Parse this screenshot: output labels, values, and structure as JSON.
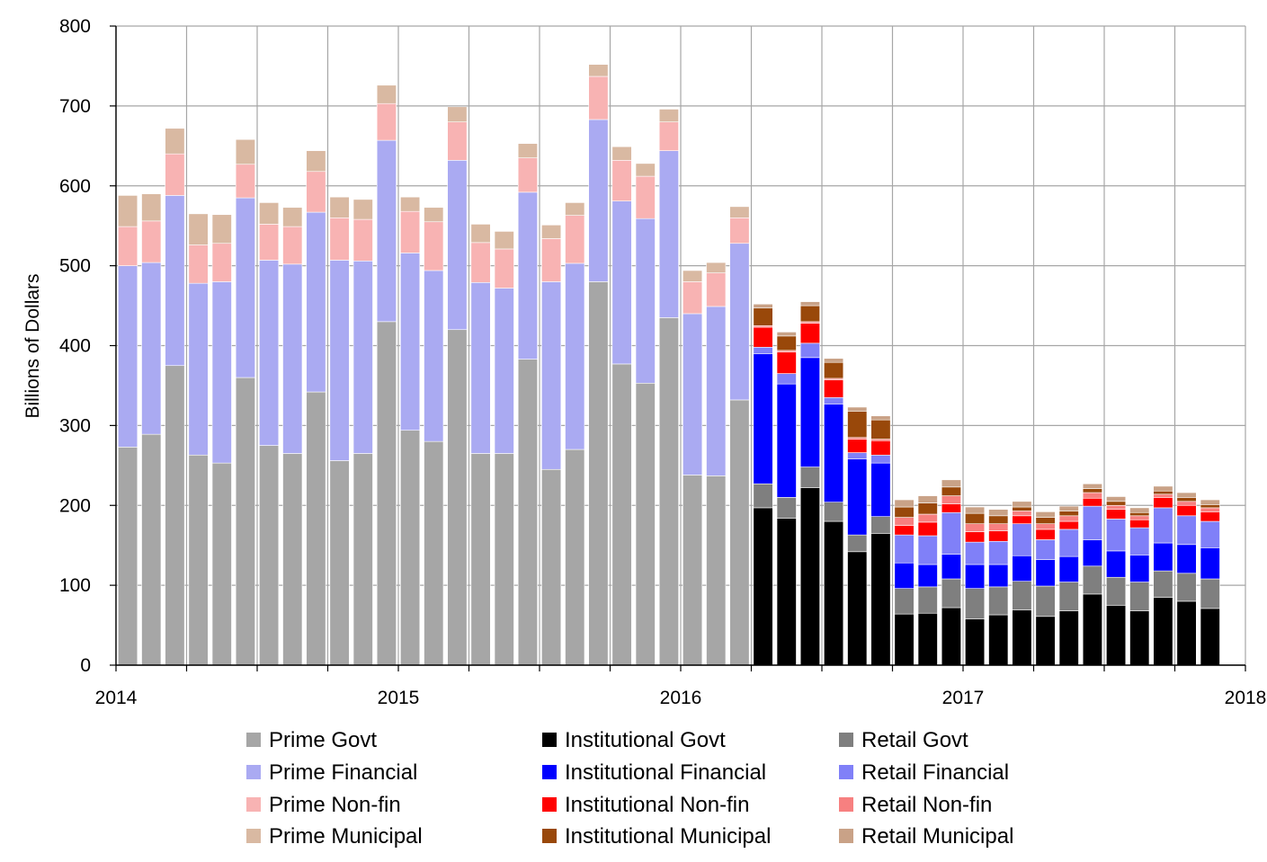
{
  "chart_data": {
    "type": "bar",
    "stacked": true,
    "title": "",
    "xlabel": "",
    "ylabel": "Billions of Dollars",
    "ylim": [
      0,
      800
    ],
    "yticks": [
      "0",
      "100",
      "200",
      "300",
      "400",
      "500",
      "600",
      "700",
      "800"
    ],
    "xticks": [
      "2014",
      "2015",
      "2016",
      "2017",
      "2018"
    ],
    "grid": true,
    "legend_position": "bottom",
    "x": [
      "2014-01",
      "2014-02",
      "2014-03",
      "2014-04",
      "2014-05",
      "2014-06",
      "2014-07",
      "2014-08",
      "2014-09",
      "2014-10",
      "2014-11",
      "2014-12",
      "2015-01",
      "2015-02",
      "2015-03",
      "2015-04",
      "2015-05",
      "2015-06",
      "2015-07",
      "2015-08",
      "2015-09",
      "2015-10",
      "2015-11",
      "2015-12",
      "2016-01",
      "2016-02",
      "2016-03",
      "2016-04",
      "2016-05",
      "2016-06",
      "2016-07",
      "2016-08",
      "2016-09",
      "2016-10",
      "2016-11",
      "2016-12",
      "2017-01",
      "2017-02",
      "2017-03",
      "2017-04",
      "2017-05",
      "2017-06",
      "2017-07",
      "2017-08",
      "2017-09",
      "2017-10",
      "2017-11"
    ],
    "series": [
      {
        "name": "Prime Govt",
        "color": "#a6a6a6",
        "values": [
          273,
          289,
          375,
          263,
          253,
          360,
          275,
          265,
          342,
          256,
          265,
          430,
          294,
          280,
          420,
          265,
          265,
          383,
          245,
          270,
          480,
          377,
          353,
          435,
          238,
          237,
          332,
          0,
          0,
          0,
          0,
          0,
          0,
          0,
          0,
          0,
          0,
          0,
          0,
          0,
          0,
          0,
          0,
          0,
          0,
          0,
          0
        ]
      },
      {
        "name": "Prime Financial",
        "color": "#aaaaf2",
        "values": [
          227,
          215,
          213,
          215,
          227,
          225,
          232,
          237,
          225,
          251,
          241,
          227,
          222,
          214,
          212,
          214,
          207,
          209,
          235,
          233,
          203,
          204,
          206,
          209,
          202,
          212,
          196,
          0,
          0,
          0,
          0,
          0,
          0,
          0,
          0,
          0,
          0,
          0,
          0,
          0,
          0,
          0,
          0,
          0,
          0,
          0,
          0
        ]
      },
      {
        "name": "Prime Non-fin",
        "color": "#f8b3b3",
        "values": [
          49,
          52,
          52,
          48,
          48,
          42,
          45,
          47,
          51,
          53,
          52,
          46,
          52,
          61,
          48,
          50,
          49,
          43,
          54,
          60,
          54,
          51,
          53,
          36,
          40,
          42,
          32,
          0,
          0,
          0,
          0,
          0,
          0,
          0,
          0,
          0,
          0,
          0,
          0,
          0,
          0,
          0,
          0,
          0,
          0,
          0,
          0
        ]
      },
      {
        "name": "Prime Municipal",
        "color": "#d9b9a2",
        "values": [
          39,
          34,
          32,
          39,
          36,
          31,
          27,
          24,
          26,
          26,
          25,
          23,
          18,
          18,
          19,
          23,
          22,
          18,
          17,
          16,
          15,
          17,
          16,
          16,
          14,
          13,
          14,
          0,
          0,
          0,
          0,
          0,
          0,
          0,
          0,
          0,
          0,
          0,
          0,
          0,
          0,
          0,
          0,
          0,
          0,
          0,
          0
        ]
      },
      {
        "name": "Institutional Govt",
        "color": "#000000",
        "values": [
          0,
          0,
          0,
          0,
          0,
          0,
          0,
          0,
          0,
          0,
          0,
          0,
          0,
          0,
          0,
          0,
          0,
          0,
          0,
          0,
          0,
          0,
          0,
          0,
          0,
          0,
          0,
          197,
          184,
          222,
          180,
          142,
          165,
          64,
          65,
          72,
          58,
          63,
          69,
          61,
          68,
          89,
          75,
          68,
          85,
          80,
          71
        ]
      },
      {
        "name": "Institutional Financial",
        "color": "#0000ff",
        "values": [
          0,
          0,
          0,
          0,
          0,
          0,
          0,
          0,
          0,
          0,
          0,
          0,
          0,
          0,
          0,
          0,
          0,
          0,
          0,
          0,
          0,
          0,
          0,
          0,
          0,
          0,
          0,
          163,
          142,
          137,
          123,
          95,
          67,
          32,
          28,
          31,
          30,
          28,
          32,
          33,
          32,
          33,
          33,
          34,
          35,
          36,
          39
        ]
      },
      {
        "name": "Institutional Non-fin",
        "color": "#ff0000",
        "values": [
          0,
          0,
          0,
          0,
          0,
          0,
          0,
          0,
          0,
          0,
          0,
          0,
          0,
          0,
          0,
          0,
          0,
          0,
          0,
          0,
          0,
          0,
          0,
          0,
          0,
          0,
          0,
          25,
          27,
          25,
          22,
          17,
          18,
          12,
          17,
          11,
          13,
          13,
          10,
          13,
          10,
          10,
          12,
          10,
          13,
          13,
          12
        ]
      },
      {
        "name": "Institutional Municipal",
        "color": "#99480a",
        "values": [
          0,
          0,
          0,
          0,
          0,
          0,
          0,
          0,
          0,
          0,
          0,
          0,
          0,
          0,
          0,
          0,
          0,
          0,
          0,
          0,
          0,
          0,
          0,
          0,
          0,
          0,
          0,
          22,
          18,
          20,
          20,
          33,
          24,
          13,
          14,
          11,
          13,
          10,
          5,
          8,
          6,
          5,
          5,
          4,
          4,
          5,
          4
        ]
      },
      {
        "name": "Retail Govt",
        "color": "#7f7f7f",
        "values": [
          0,
          0,
          0,
          0,
          0,
          0,
          0,
          0,
          0,
          0,
          0,
          0,
          0,
          0,
          0,
          0,
          0,
          0,
          0,
          0,
          0,
          0,
          0,
          0,
          0,
          0,
          0,
          30,
          26,
          26,
          24,
          21,
          21,
          32,
          33,
          36,
          38,
          35,
          36,
          38,
          36,
          35,
          35,
          36,
          33,
          35,
          37
        ]
      },
      {
        "name": "Retail Financial",
        "color": "#8080f8",
        "values": [
          0,
          0,
          0,
          0,
          0,
          0,
          0,
          0,
          0,
          0,
          0,
          0,
          0,
          0,
          0,
          0,
          0,
          0,
          0,
          0,
          0,
          0,
          0,
          0,
          0,
          0,
          0,
          8,
          13,
          18,
          8,
          8,
          10,
          35,
          36,
          52,
          28,
          29,
          40,
          25,
          34,
          42,
          40,
          34,
          44,
          36,
          33
        ]
      },
      {
        "name": "Retail Non-fin",
        "color": "#f78080",
        "values": [
          0,
          0,
          0,
          0,
          0,
          0,
          0,
          0,
          0,
          0,
          0,
          0,
          0,
          0,
          0,
          0,
          0,
          0,
          0,
          0,
          0,
          0,
          0,
          0,
          0,
          0,
          0,
          2,
          2,
          2,
          2,
          2,
          2,
          10,
          10,
          10,
          10,
          9,
          6,
          7,
          7,
          7,
          5,
          5,
          4,
          5,
          5
        ]
      },
      {
        "name": "Retail Municipal",
        "color": "#c9a287",
        "values": [
          0,
          0,
          0,
          0,
          0,
          0,
          0,
          0,
          0,
          0,
          0,
          0,
          0,
          0,
          0,
          0,
          0,
          0,
          0,
          0,
          0,
          0,
          0,
          0,
          0,
          0,
          0,
          5,
          5,
          5,
          5,
          5,
          5,
          9,
          9,
          9,
          8,
          8,
          7,
          7,
          6,
          6,
          6,
          6,
          6,
          6,
          6
        ]
      }
    ],
    "legend": {
      "columns": [
        [
          "Prime Govt",
          "Prime Financial",
          "Prime Non-fin",
          "Prime Municipal"
        ],
        [
          "Institutional Govt",
          "Institutional Financial",
          "Institutional Non-fin",
          "Institutional Municipal"
        ],
        [
          "Retail Govt",
          "Retail Financial",
          "Retail Non-fin",
          "Retail Municipal"
        ]
      ]
    }
  }
}
